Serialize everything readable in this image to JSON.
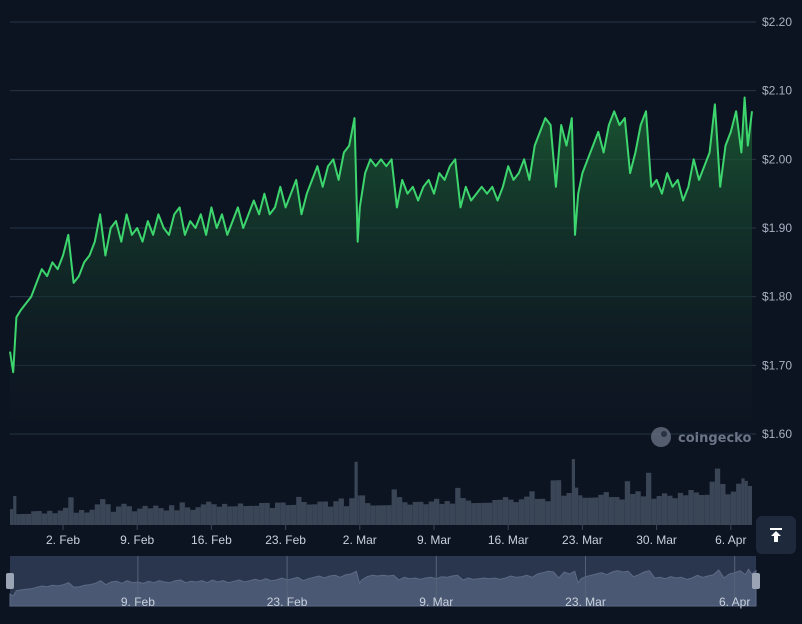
{
  "watermark": "coingecko",
  "scroll_top_icon": "arrow-to-top-icon",
  "colors": {
    "background": "#0d1421",
    "line": "#3dd56d",
    "area_top": "#1b5e34",
    "grid": "#253447",
    "volume": "#3a4556",
    "navigator_bg": "#2a364d"
  },
  "chart_data": {
    "type": "area",
    "title": "",
    "xlabel": "",
    "ylabel": "",
    "y_ticks": [
      "$2.20",
      "$2.10",
      "$2.00",
      "$1.90",
      "$1.80",
      "$1.70",
      "$1.60"
    ],
    "y_tick_values": [
      2.2,
      2.1,
      2.0,
      1.9,
      1.8,
      1.7,
      1.6
    ],
    "ylim": [
      1.6,
      2.2
    ],
    "x_ticks": [
      "2. Feb",
      "9. Feb",
      "16. Feb",
      "23. Feb",
      "2. Mar",
      "9. Mar",
      "16. Mar",
      "23. Mar",
      "30. Mar",
      "6. Apr"
    ],
    "x_tick_days": [
      5,
      12,
      19,
      26,
      33,
      40,
      47,
      54,
      61,
      68
    ],
    "navigator_ticks": [
      "9. Feb",
      "23. Feb",
      "9. Mar",
      "23. Mar",
      "6. Apr"
    ],
    "navigator_tick_days": [
      12,
      26,
      40,
      54,
      68
    ],
    "x_range_days": [
      0,
      70
    ],
    "grid": true,
    "series": [
      {
        "values": [
          [
            0,
            1.72
          ],
          [
            0.3,
            1.69
          ],
          [
            0.6,
            1.77
          ],
          [
            1,
            1.78
          ],
          [
            1.5,
            1.79
          ],
          [
            2,
            1.8
          ],
          [
            2.5,
            1.82
          ],
          [
            3,
            1.84
          ],
          [
            3.5,
            1.83
          ],
          [
            4,
            1.85
          ],
          [
            4.5,
            1.84
          ],
          [
            5,
            1.86
          ],
          [
            5.5,
            1.89
          ],
          [
            6,
            1.82
          ],
          [
            6.5,
            1.83
          ],
          [
            7,
            1.85
          ],
          [
            7.5,
            1.86
          ],
          [
            8,
            1.88
          ],
          [
            8.5,
            1.92
          ],
          [
            9,
            1.86
          ],
          [
            9.5,
            1.9
          ],
          [
            10,
            1.91
          ],
          [
            10.5,
            1.88
          ],
          [
            11,
            1.92
          ],
          [
            11.5,
            1.89
          ],
          [
            12,
            1.9
          ],
          [
            12.5,
            1.88
          ],
          [
            13,
            1.91
          ],
          [
            13.5,
            1.89
          ],
          [
            14,
            1.92
          ],
          [
            14.5,
            1.9
          ],
          [
            15,
            1.89
          ],
          [
            15.5,
            1.92
          ],
          [
            16,
            1.93
          ],
          [
            16.5,
            1.89
          ],
          [
            17,
            1.91
          ],
          [
            17.5,
            1.9
          ],
          [
            18,
            1.92
          ],
          [
            18.5,
            1.89
          ],
          [
            19,
            1.93
          ],
          [
            19.5,
            1.9
          ],
          [
            20,
            1.92
          ],
          [
            20.5,
            1.89
          ],
          [
            21,
            1.91
          ],
          [
            21.5,
            1.93
          ],
          [
            22,
            1.9
          ],
          [
            22.5,
            1.92
          ],
          [
            23,
            1.94
          ],
          [
            23.5,
            1.92
          ],
          [
            24,
            1.95
          ],
          [
            24.5,
            1.92
          ],
          [
            25,
            1.93
          ],
          [
            25.5,
            1.96
          ],
          [
            26,
            1.93
          ],
          [
            26.5,
            1.95
          ],
          [
            27,
            1.97
          ],
          [
            27.5,
            1.92
          ],
          [
            28,
            1.95
          ],
          [
            28.5,
            1.97
          ],
          [
            29,
            1.99
          ],
          [
            29.5,
            1.96
          ],
          [
            30,
            1.99
          ],
          [
            30.5,
            2.0
          ],
          [
            31,
            1.97
          ],
          [
            31.5,
            2.01
          ],
          [
            32,
            2.02
          ],
          [
            32.5,
            2.06
          ],
          [
            32.8,
            1.88
          ],
          [
            33,
            1.93
          ],
          [
            33.5,
            1.98
          ],
          [
            34,
            2.0
          ],
          [
            34.5,
            1.99
          ],
          [
            35,
            2.0
          ],
          [
            35.5,
            1.99
          ],
          [
            36,
            2.0
          ],
          [
            36.5,
            1.93
          ],
          [
            37,
            1.97
          ],
          [
            37.5,
            1.95
          ],
          [
            38,
            1.96
          ],
          [
            38.5,
            1.94
          ],
          [
            39,
            1.96
          ],
          [
            39.5,
            1.97
          ],
          [
            40,
            1.95
          ],
          [
            40.5,
            1.98
          ],
          [
            41,
            1.97
          ],
          [
            41.5,
            1.99
          ],
          [
            42,
            2.0
          ],
          [
            42.5,
            1.93
          ],
          [
            43,
            1.96
          ],
          [
            43.5,
            1.94
          ],
          [
            44,
            1.95
          ],
          [
            44.5,
            1.96
          ],
          [
            45,
            1.95
          ],
          [
            45.5,
            1.96
          ],
          [
            46,
            1.94
          ],
          [
            46.5,
            1.96
          ],
          [
            47,
            1.99
          ],
          [
            47.5,
            1.97
          ],
          [
            48,
            1.98
          ],
          [
            48.5,
            2.0
          ],
          [
            49,
            1.97
          ],
          [
            49.5,
            2.02
          ],
          [
            50,
            2.04
          ],
          [
            50.5,
            2.06
          ],
          [
            51,
            2.05
          ],
          [
            51.5,
            1.96
          ],
          [
            52,
            2.05
          ],
          [
            52.5,
            2.02
          ],
          [
            53,
            2.06
          ],
          [
            53.3,
            1.89
          ],
          [
            53.6,
            1.95
          ],
          [
            54,
            1.98
          ],
          [
            54.5,
            2.0
          ],
          [
            55,
            2.02
          ],
          [
            55.5,
            2.04
          ],
          [
            56,
            2.01
          ],
          [
            56.5,
            2.05
          ],
          [
            57,
            2.07
          ],
          [
            57.5,
            2.05
          ],
          [
            58,
            2.06
          ],
          [
            58.5,
            1.98
          ],
          [
            59,
            2.01
          ],
          [
            59.5,
            2.05
          ],
          [
            60,
            2.07
          ],
          [
            60.5,
            1.96
          ],
          [
            61,
            1.97
          ],
          [
            61.5,
            1.95
          ],
          [
            62,
            1.98
          ],
          [
            62.5,
            1.96
          ],
          [
            63,
            1.97
          ],
          [
            63.5,
            1.94
          ],
          [
            64,
            1.96
          ],
          [
            64.5,
            2.0
          ],
          [
            65,
            1.97
          ],
          [
            65.5,
            1.99
          ],
          [
            66,
            2.01
          ],
          [
            66.5,
            2.08
          ],
          [
            67,
            1.96
          ],
          [
            67.5,
            2.02
          ],
          [
            68,
            2.04
          ],
          [
            68.5,
            2.07
          ],
          [
            69,
            2.01
          ],
          [
            69.3,
            2.09
          ],
          [
            69.6,
            2.02
          ],
          [
            70,
            2.07
          ]
        ]
      }
    ]
  }
}
